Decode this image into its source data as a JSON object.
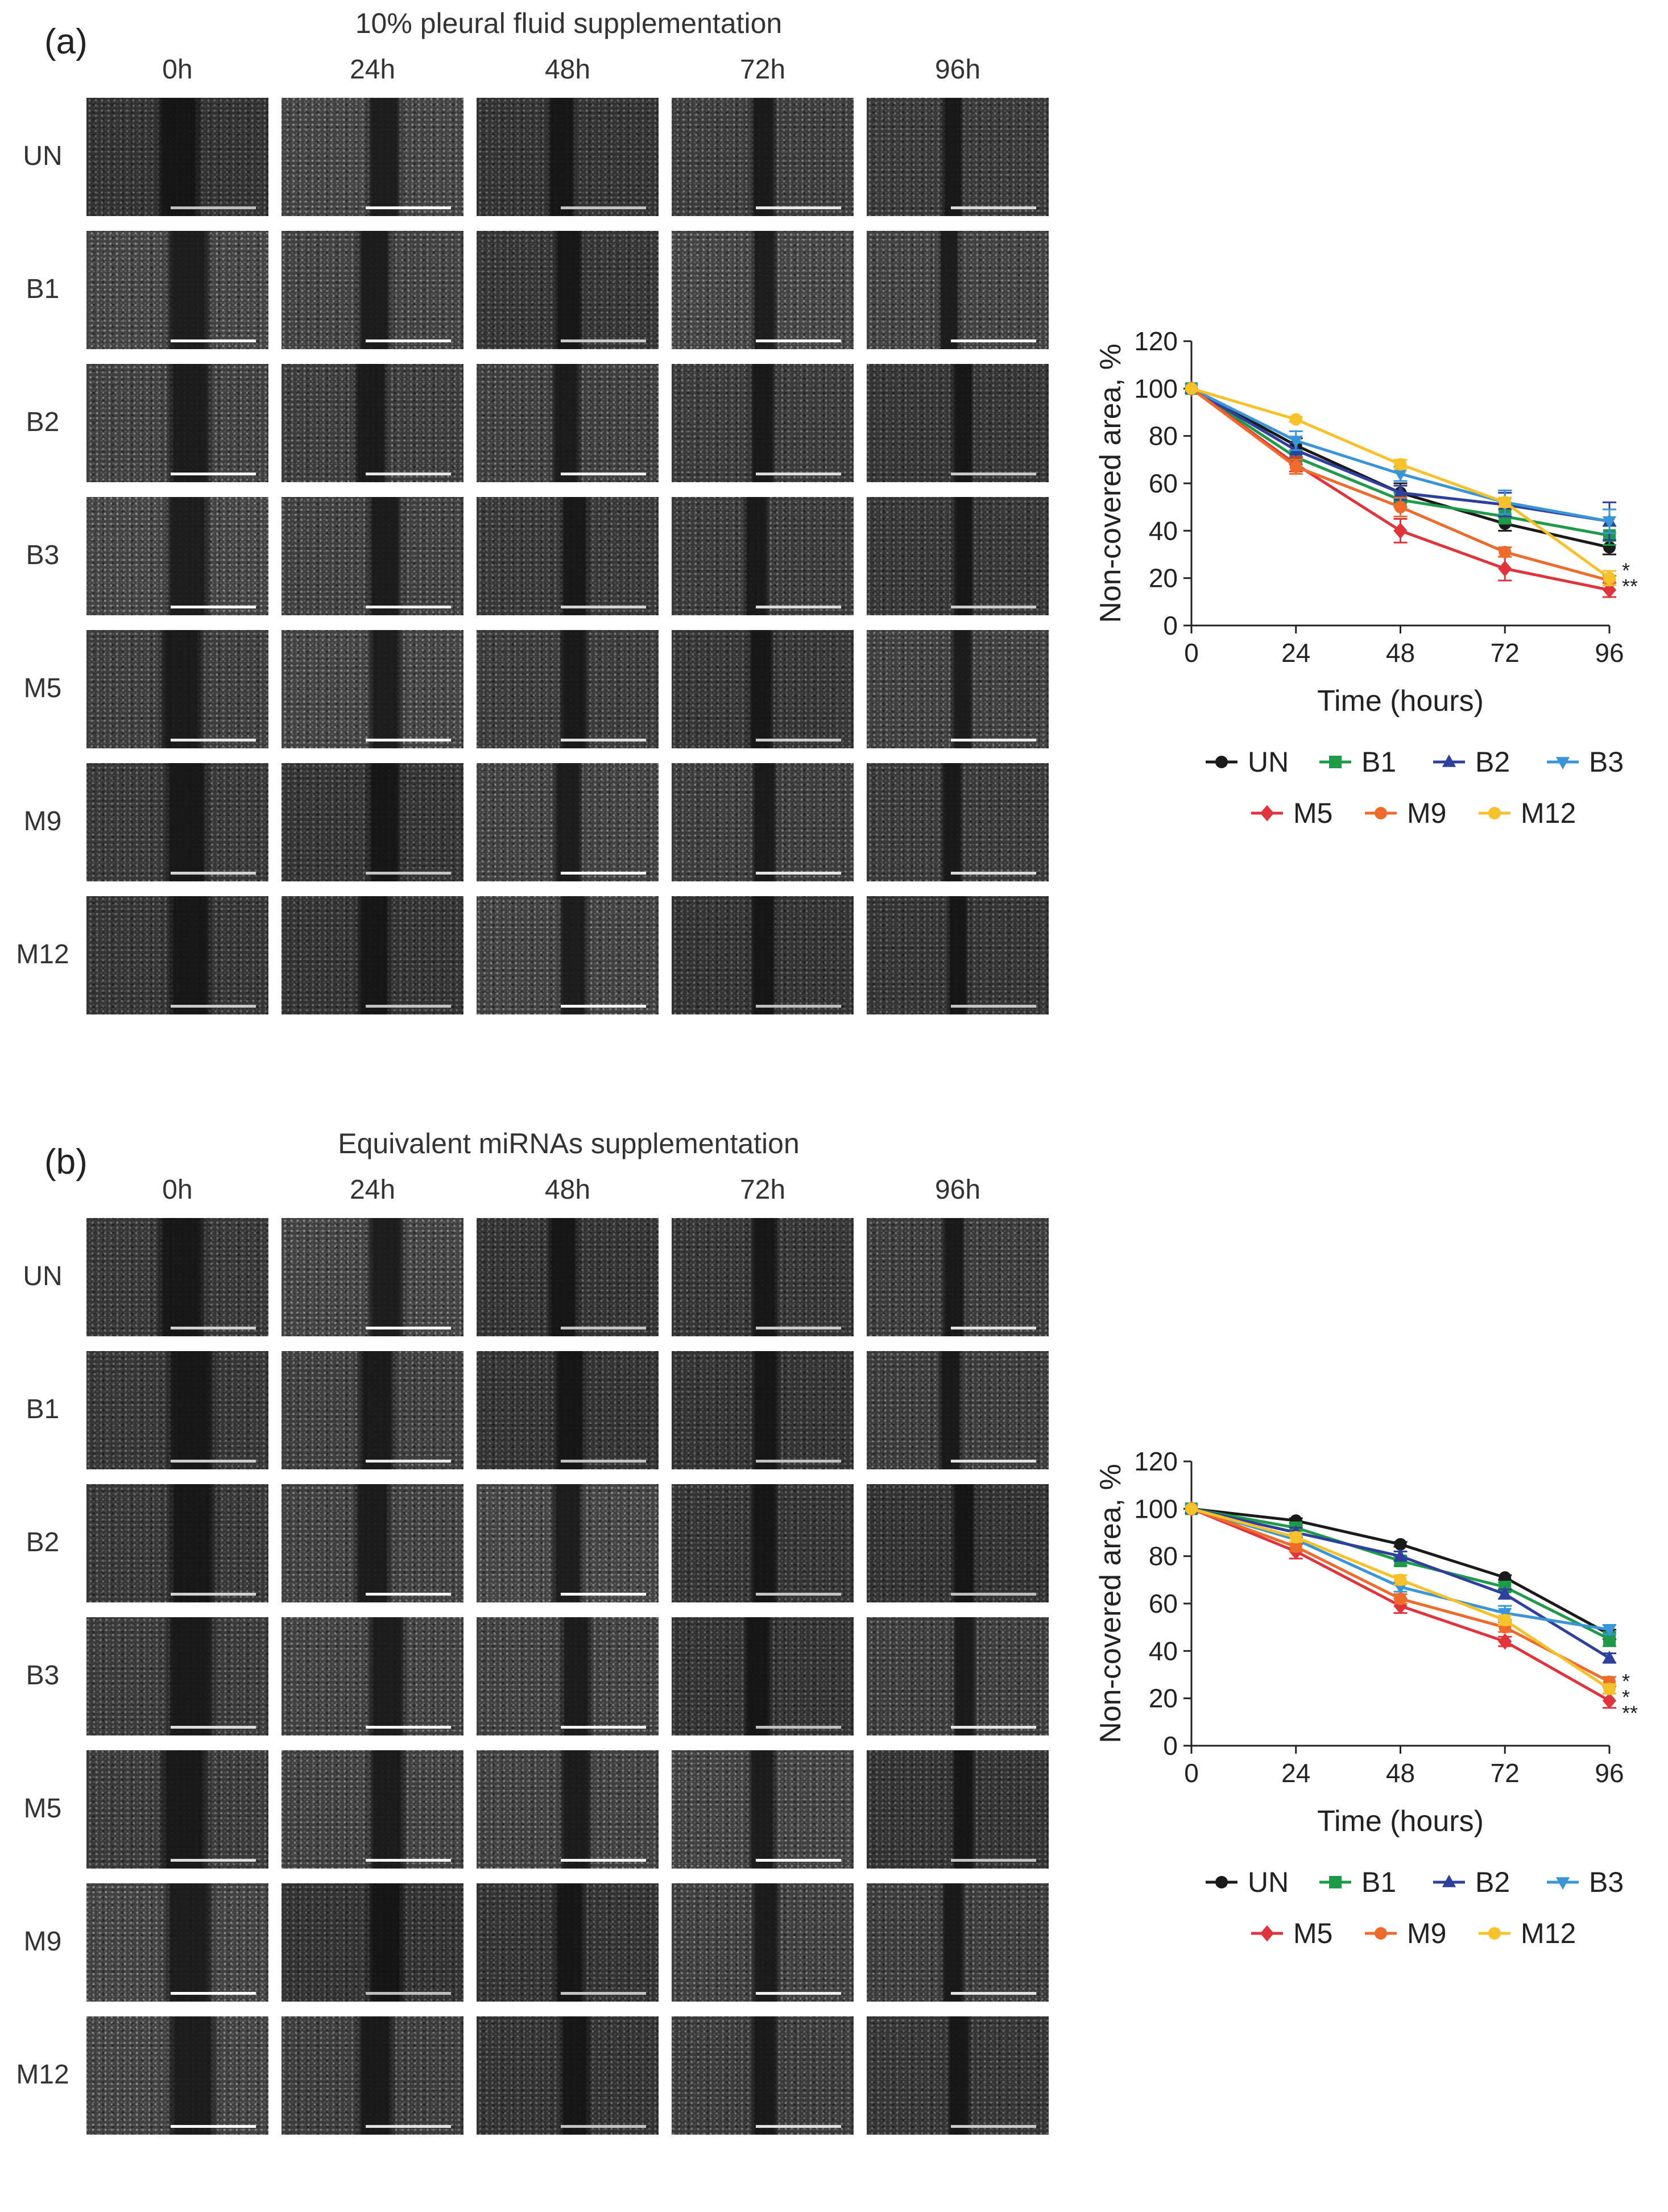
{
  "panels": [
    {
      "label": "(a)",
      "title": "10% pleural fluid supplementation",
      "columns": [
        "0h",
        "24h",
        "48h",
        "72h",
        "96h"
      ],
      "rows": [
        "UN",
        "B1",
        "B2",
        "B3",
        "M5",
        "M9",
        "M12"
      ]
    },
    {
      "label": "(b)",
      "title": "Equivalent miRNAs supplementation",
      "columns": [
        "0h",
        "24h",
        "48h",
        "72h",
        "96h"
      ],
      "rows": [
        "UN",
        "B1",
        "B2",
        "B3",
        "M5",
        "M9",
        "M12"
      ]
    }
  ],
  "chart_data": [
    {
      "type": "line",
      "xlabel": "Time (hours)",
      "ylabel": "Non-covered area, %",
      "x": [
        0,
        24,
        48,
        72,
        96
      ],
      "xticks": [
        "0",
        "24",
        "48",
        "72",
        "96"
      ],
      "yticks": [
        "0",
        "20",
        "40",
        "60",
        "80",
        "100",
        "120"
      ],
      "ylim": [
        0,
        120
      ],
      "legend_placement": "bottom",
      "significance_marks": [
        "*",
        "**"
      ],
      "series": [
        {
          "name": "UN",
          "values": [
            100,
            76,
            56,
            43,
            33
          ],
          "error": [
            0,
            3,
            4,
            3,
            3
          ],
          "color": "#1a1a1a",
          "marker": "circle"
        },
        {
          "name": "B1",
          "values": [
            100,
            71,
            53,
            46,
            38
          ],
          "error": [
            0,
            3,
            3,
            3,
            4
          ],
          "color": "#1e9a48",
          "marker": "square"
        },
        {
          "name": "B2",
          "values": [
            100,
            74,
            56,
            51,
            44
          ],
          "error": [
            0,
            3,
            3,
            5,
            8
          ],
          "color": "#2f3f9e",
          "marker": "triangle-up"
        },
        {
          "name": "B3",
          "values": [
            100,
            78,
            64,
            52,
            44
          ],
          "error": [
            0,
            4,
            3,
            5,
            5
          ],
          "color": "#3a94d8",
          "marker": "triangle-down"
        },
        {
          "name": "M5",
          "values": [
            100,
            68,
            40,
            24,
            15
          ],
          "error": [
            0,
            3,
            5,
            5,
            3
          ],
          "color": "#e0343c",
          "marker": "diamond"
        },
        {
          "name": "M9",
          "values": [
            100,
            67,
            50,
            31,
            19
          ],
          "error": [
            0,
            3,
            4,
            2,
            2
          ],
          "color": "#ee6b2c",
          "marker": "circle"
        },
        {
          "name": "M12",
          "values": [
            100,
            87,
            68,
            52,
            20
          ],
          "error": [
            0,
            1,
            2,
            2,
            3
          ],
          "color": "#f6c12a",
          "marker": "circle"
        }
      ]
    },
    {
      "type": "line",
      "xlabel": "Time (hours)",
      "ylabel": "Non-covered area, %",
      "x": [
        0,
        24,
        48,
        72,
        96
      ],
      "xticks": [
        "0",
        "24",
        "48",
        "72",
        "96"
      ],
      "yticks": [
        "0",
        "20",
        "40",
        "60",
        "80",
        "100",
        "120"
      ],
      "ylim": [
        0,
        120
      ],
      "legend_placement": "bottom",
      "significance_marks": [
        "*",
        "*",
        "**"
      ],
      "series": [
        {
          "name": "UN",
          "values": [
            100,
            95,
            85,
            71,
            47
          ],
          "error": [
            0,
            1,
            1,
            1,
            2
          ],
          "color": "#1a1a1a",
          "marker": "circle"
        },
        {
          "name": "B1",
          "values": [
            100,
            92,
            78,
            67,
            45
          ],
          "error": [
            0,
            1,
            2,
            2,
            3
          ],
          "color": "#1e9a48",
          "marker": "square"
        },
        {
          "name": "B2",
          "values": [
            100,
            90,
            80,
            64,
            37
          ],
          "error": [
            0,
            2,
            2,
            2,
            2
          ],
          "color": "#2f3f9e",
          "marker": "triangle-up"
        },
        {
          "name": "B3",
          "values": [
            100,
            87,
            67,
            56,
            49
          ],
          "error": [
            0,
            2,
            2,
            3,
            2
          ],
          "color": "#3a94d8",
          "marker": "triangle-down"
        },
        {
          "name": "M5",
          "values": [
            100,
            82,
            59,
            44,
            19
          ],
          "error": [
            0,
            3,
            3,
            2,
            3
          ],
          "color": "#e0343c",
          "marker": "diamond"
        },
        {
          "name": "M9",
          "values": [
            100,
            84,
            62,
            50,
            27
          ],
          "error": [
            0,
            2,
            2,
            2,
            2
          ],
          "color": "#ee6b2c",
          "marker": "circle"
        },
        {
          "name": "M12",
          "values": [
            100,
            88,
            70,
            53,
            24
          ],
          "error": [
            0,
            2,
            2,
            2,
            2
          ],
          "color": "#f6c12a",
          "marker": "circle"
        }
      ]
    }
  ]
}
